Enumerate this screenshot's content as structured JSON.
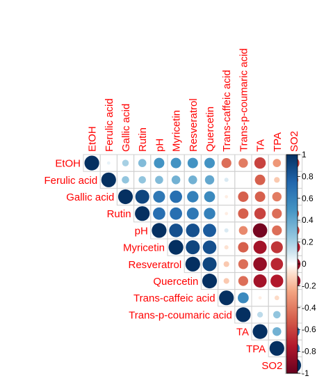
{
  "chart_data": {
    "type": "heatmap",
    "variables": [
      "EtOH",
      "Ferulic acid",
      "Gallic acid",
      "Rutin",
      "pH",
      "Myricetin",
      "Resveratrol",
      "Quercetin",
      "Trans-caffeic acid",
      "Trans-p-coumaric acid",
      "TA",
      "TPA",
      "SO2"
    ],
    "matrix": [
      [
        1.0,
        0.05,
        0.2,
        0.3,
        0.5,
        0.5,
        0.5,
        0.5,
        -0.45,
        -0.4,
        -0.6,
        -0.3,
        -0.6
      ],
      [
        0.05,
        1.0,
        0.25,
        0.25,
        0.3,
        0.35,
        0.35,
        0.4,
        0.08,
        0.0,
        -0.5,
        -0.15,
        -0.4
      ],
      [
        0.2,
        0.25,
        1.0,
        0.9,
        0.65,
        0.7,
        0.6,
        0.55,
        -0.05,
        -0.5,
        -0.5,
        -0.4,
        -0.3
      ],
      [
        0.3,
        0.25,
        0.9,
        1.0,
        0.7,
        0.7,
        0.65,
        0.6,
        -0.05,
        -0.5,
        -0.6,
        -0.45,
        -0.5
      ],
      [
        0.5,
        0.3,
        0.65,
        0.7,
        1.0,
        0.85,
        0.85,
        0.8,
        0.08,
        -0.35,
        -0.95,
        -0.45,
        -0.6
      ],
      [
        0.5,
        0.35,
        0.7,
        0.7,
        0.85,
        1.0,
        0.9,
        0.85,
        -0.08,
        -0.5,
        -0.8,
        -0.65,
        -0.75
      ],
      [
        0.5,
        0.35,
        0.6,
        0.65,
        0.85,
        0.9,
        1.0,
        0.9,
        -0.15,
        -0.45,
        -0.85,
        -0.7,
        -0.85
      ],
      [
        0.5,
        0.4,
        0.55,
        0.6,
        0.8,
        0.85,
        0.9,
        1.0,
        -0.15,
        -0.45,
        -0.8,
        -0.75,
        -0.85
      ],
      [
        -0.45,
        0.08,
        -0.05,
        -0.05,
        0.08,
        -0.08,
        -0.15,
        -0.15,
        1.0,
        0.55,
        -0.05,
        -0.1,
        0.05
      ],
      [
        -0.4,
        0.0,
        -0.5,
        -0.5,
        -0.35,
        -0.5,
        -0.45,
        -0.45,
        0.55,
        1.0,
        0.15,
        0.25,
        -0.05
      ],
      [
        -0.6,
        -0.5,
        -0.5,
        -0.6,
        -0.95,
        -0.8,
        -0.85,
        -0.8,
        -0.05,
        0.15,
        1.0,
        0.35,
        0.65
      ],
      [
        -0.3,
        -0.15,
        -0.4,
        -0.45,
        -0.45,
        -0.65,
        -0.7,
        -0.75,
        -0.1,
        0.25,
        0.35,
        1.0,
        0.65
      ],
      [
        -0.6,
        -0.4,
        -0.3,
        -0.5,
        -0.6,
        -0.75,
        -0.85,
        -0.85,
        0.05,
        -0.05,
        0.65,
        0.65,
        1.0
      ]
    ],
    "colorbar": {
      "range": [
        -1,
        1
      ],
      "ticks": [
        "1",
        "0.8",
        "0.6",
        "0.4",
        "0.2",
        "0",
        "-0.2",
        "-0.4",
        "-0.6",
        "-0.8",
        "-1"
      ],
      "colors": {
        "positive": "#053061",
        "neutral": "#ffffff",
        "negative": "#67001f"
      }
    },
    "label_color": "#ff0000",
    "upper_triangle_only": true
  }
}
